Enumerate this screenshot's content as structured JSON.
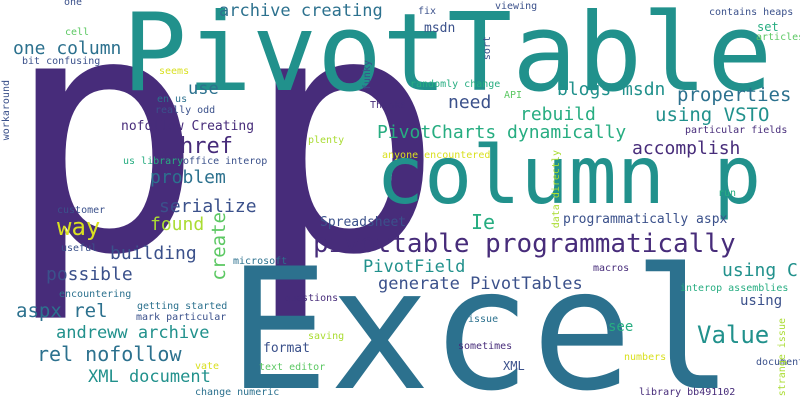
{
  "palette": {
    "background": "#ffffff",
    "dark_purple": "#472c7a",
    "deep_blue": "#3b518b",
    "blue": "#2c718e",
    "teal": "#21918c",
    "green_teal": "#27ad81",
    "green": "#5cc863",
    "light_green": "#aadc32",
    "yellow": "#d9e020"
  },
  "words": [
    {
      "text": "p",
      "color": "#472c7a"
    },
    {
      "text": "p",
      "color": "#472c7a"
    },
    {
      "text": "PivotTable",
      "color": "#21918c"
    },
    {
      "text": "Excel",
      "color": "#2c718e"
    },
    {
      "text": "column p",
      "color": "#21918c"
    },
    {
      "text": "pivottable programmatically",
      "color": "#472c7a"
    },
    {
      "text": "archive creating",
      "color": "#2c718e"
    },
    {
      "text": "one column",
      "color": "#2c718e"
    },
    {
      "text": "use",
      "color": "#2c718e"
    },
    {
      "text": "href",
      "color": "#472c7a"
    },
    {
      "text": "need",
      "color": "#3b518b"
    },
    {
      "text": "properties",
      "color": "#2c718e"
    },
    {
      "text": "blogs msdn",
      "color": "#21918c"
    },
    {
      "text": "rebuild",
      "color": "#27ad81"
    },
    {
      "text": "using VSTO",
      "color": "#21918c"
    },
    {
      "text": "PivotCharts dynamically",
      "color": "#27ad81"
    },
    {
      "text": "accomplish",
      "color": "#472c7a"
    },
    {
      "text": "nofollow Creating",
      "color": "#472c7a"
    },
    {
      "text": "problem",
      "color": "#2c718e"
    },
    {
      "text": "serialize",
      "color": "#3b518b"
    },
    {
      "text": "way",
      "color": "#d9e020"
    },
    {
      "text": "found",
      "color": "#aadc32"
    },
    {
      "text": "create",
      "color": "#5cc863"
    },
    {
      "text": "building",
      "color": "#3b518b"
    },
    {
      "text": "Ie",
      "color": "#27ad81"
    },
    {
      "text": "Spreadsheet",
      "color": "#3b518b"
    },
    {
      "text": "programmatically aspx",
      "color": "#3b518b"
    },
    {
      "text": "possible",
      "color": "#3b518b"
    },
    {
      "text": "PivotField",
      "color": "#21918c"
    },
    {
      "text": "generate PivotTables",
      "color": "#3b518b"
    },
    {
      "text": "using C",
      "color": "#21918c"
    },
    {
      "text": "aspx rel",
      "color": "#2c718e"
    },
    {
      "text": "andreww archive",
      "color": "#21918c"
    },
    {
      "text": "using",
      "color": "#3b518b"
    },
    {
      "text": "Value",
      "color": "#21918c"
    },
    {
      "text": "rel nofollow",
      "color": "#2c718e"
    },
    {
      "text": "format",
      "color": "#3b518b"
    },
    {
      "text": "XML document",
      "color": "#21918c"
    },
    {
      "text": "XML",
      "color": "#3b518b"
    },
    {
      "text": "see",
      "color": "#27ad81"
    },
    {
      "text": "msdn",
      "color": "#3b518b"
    },
    {
      "text": "fix",
      "color": "#3b518b"
    },
    {
      "text": "viewing",
      "color": "#3b518b"
    },
    {
      "text": "contains heaps",
      "color": "#3b518b"
    },
    {
      "text": "set",
      "color": "#27ad81"
    },
    {
      "text": "articles",
      "color": "#5cc863"
    },
    {
      "text": "one",
      "color": "#3b518b"
    },
    {
      "text": "cell",
      "color": "#5cc863"
    },
    {
      "text": "bit confusing",
      "color": "#3b518b"
    },
    {
      "text": "seems",
      "color": "#d9e020"
    },
    {
      "text": "en us",
      "color": "#2c718e"
    },
    {
      "text": "really odd",
      "color": "#3b518b"
    },
    {
      "text": "us library",
      "color": "#27ad81"
    },
    {
      "text": "office interop",
      "color": "#3b518b"
    },
    {
      "text": "customer",
      "color": "#3b518b"
    },
    {
      "text": "useful",
      "color": "#3b518b"
    },
    {
      "text": "microsoft",
      "color": "#2c718e"
    },
    {
      "text": "encountering",
      "color": "#2c718e"
    },
    {
      "text": "getting started",
      "color": "#2c718e"
    },
    {
      "text": "mark particular",
      "color": "#3b518b"
    },
    {
      "text": "questions",
      "color": "#472c7a"
    },
    {
      "text": "saving",
      "color": "#aadc32"
    },
    {
      "text": "vate",
      "color": "#d9e020"
    },
    {
      "text": "text editor",
      "color": "#5cc863"
    },
    {
      "text": "change numeric",
      "color": "#2c718e"
    },
    {
      "text": "issue",
      "color": "#2c718e"
    },
    {
      "text": "sometimes",
      "color": "#472c7a"
    },
    {
      "text": "numbers",
      "color": "#d9e020"
    },
    {
      "text": "document",
      "color": "#3b518b"
    },
    {
      "text": "library bb491102",
      "color": "#472c7a"
    },
    {
      "text": "macros",
      "color": "#472c7a"
    },
    {
      "text": "interop assemblies",
      "color": "#27ad81"
    },
    {
      "text": "randomly change",
      "color": "#27ad81"
    },
    {
      "text": "API",
      "color": "#5cc863"
    },
    {
      "text": "Thanks",
      "color": "#472c7a"
    },
    {
      "text": "plenty",
      "color": "#aadc32"
    },
    {
      "text": "anyone encountered",
      "color": "#d9e020"
    },
    {
      "text": "particular fields",
      "color": "#472c7a"
    },
    {
      "text": "run",
      "color": "#27ad81"
    },
    {
      "text": "workaround",
      "color": "#3b518b"
    },
    {
      "text": "funky",
      "color": "#3b518b"
    },
    {
      "text": "sort",
      "color": "#3b518b"
    },
    {
      "text": "data directly",
      "color": "#aadc32"
    },
    {
      "text": "strange issue",
      "color": "#aadc32"
    }
  ]
}
